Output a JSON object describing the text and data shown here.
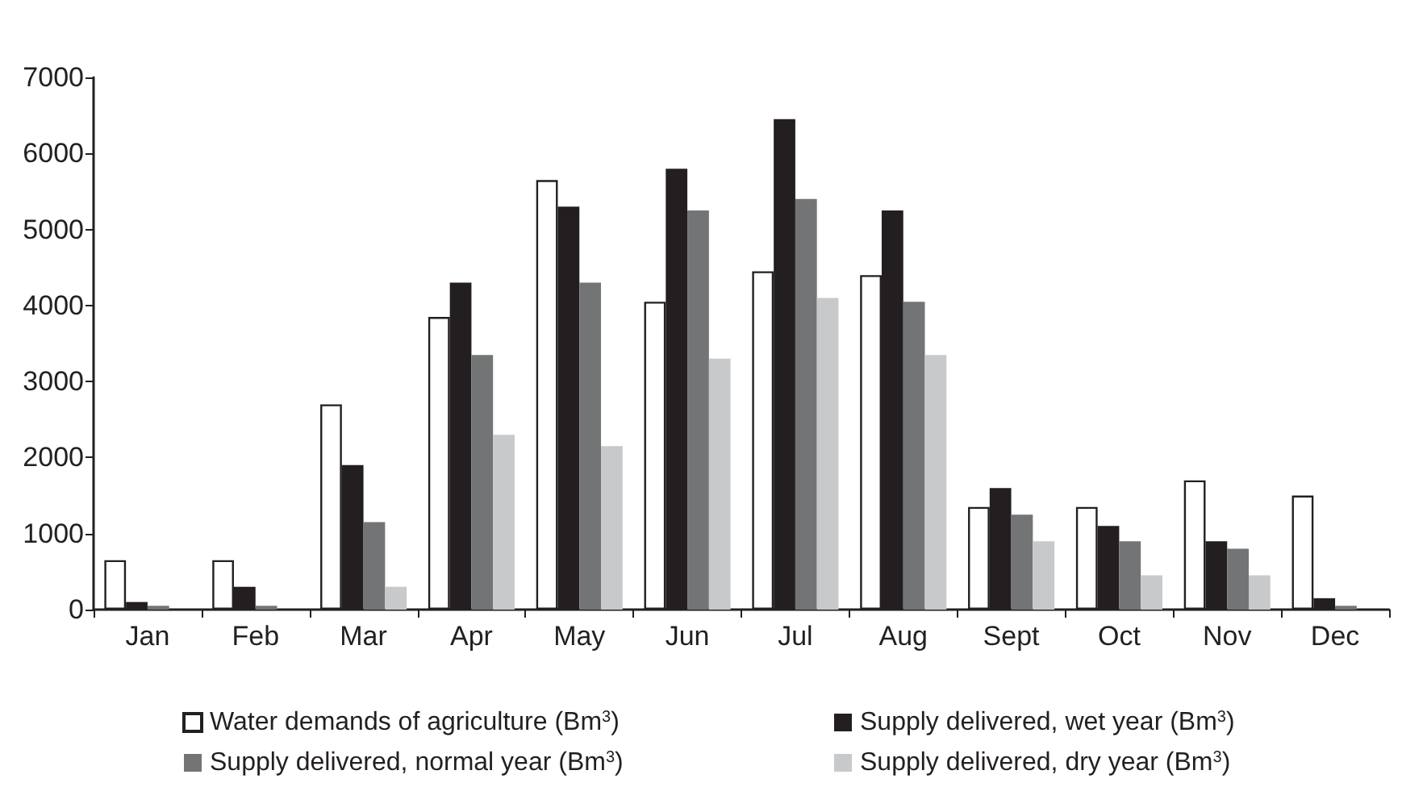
{
  "chart_data": {
    "type": "bar",
    "categories": [
      "Jan",
      "Feb",
      "Mar",
      "Apr",
      "May",
      "Jun",
      "Jul",
      "Aug",
      "Sept",
      "Oct",
      "Nov",
      "Dec"
    ],
    "series": [
      {
        "name": "Water demands of agriculture (Bm$^{3}$)",
        "color": "#ffffff",
        "values": [
          650,
          650,
          2700,
          3850,
          5650,
          4050,
          4450,
          4400,
          1350,
          1350,
          1700,
          1500
        ]
      },
      {
        "name": "Supply delivered, wet year (Bm$^{3}$)",
        "color": "#231f20",
        "values": [
          100,
          300,
          1900,
          4300,
          5300,
          5800,
          6450,
          5250,
          1600,
          1100,
          900,
          150
        ]
      },
      {
        "name": "Supply delivered, normal year (Bm$^{3}$)",
        "color": "#737476",
        "values": [
          50,
          50,
          1150,
          3350,
          4300,
          5250,
          5400,
          4050,
          1250,
          900,
          800,
          50
        ]
      },
      {
        "name": "Supply delivered, dry year (Bm$^{3}$)",
        "color": "#c8c9cb",
        "values": [
          0,
          0,
          300,
          2300,
          2150,
          3300,
          4100,
          3350,
          900,
          450,
          450,
          0
        ]
      }
    ],
    "ylim": [
      0,
      7000
    ],
    "yticks": [
      0,
      1000,
      2000,
      3000,
      4000,
      5000,
      6000,
      7000
    ],
    "grid": false,
    "legend": "bottom"
  }
}
